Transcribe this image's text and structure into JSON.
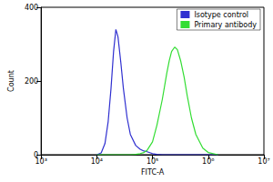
{
  "chart_data": {
    "type": "line",
    "x_label": "FITC-A",
    "y_label": "Count",
    "log": "x",
    "grid": false,
    "legend": "upper right",
    "xlim": [
      1000,
      10000000
    ],
    "xticks": [
      {
        "value": 1000,
        "label": "10³"
      },
      {
        "value": 10000,
        "label": "10⁴"
      },
      {
        "value": 100000,
        "label": "10⁵"
      },
      {
        "value": 1000000,
        "label": "10⁶"
      },
      {
        "value": 10000000,
        "label": "10⁷"
      }
    ],
    "ylim": [
      0,
      400
    ],
    "yticks": [
      0,
      200,
      400
    ],
    "x": [
      10000,
      12000,
      14000,
      16000,
      18000,
      20000,
      22000,
      24000,
      27000,
      30000,
      35000,
      40000,
      50000,
      60000,
      70000,
      80000,
      100000,
      120000,
      150000,
      180000,
      200000,
      220000,
      250000,
      280000,
      320000,
      370000,
      420000,
      500000,
      600000,
      800000,
      1000000,
      1500000
    ],
    "series": [
      {
        "name": "Isotype control",
        "color": "#3030d0",
        "values": [
          0,
          5,
          30,
          90,
          180,
          280,
          340,
          320,
          250,
          180,
          100,
          55,
          25,
          15,
          10,
          8,
          3,
          1,
          0,
          0,
          0,
          0,
          0,
          0,
          0,
          0,
          0,
          0,
          0,
          0,
          0,
          0
        ]
      },
      {
        "name": "Primary antibody",
        "color": "#33dd33",
        "values": [
          0,
          0,
          0,
          0,
          0,
          0,
          0,
          0,
          0,
          0,
          0,
          0,
          1,
          3,
          6,
          12,
          35,
          80,
          150,
          220,
          255,
          280,
          292,
          285,
          255,
          210,
          160,
          100,
          55,
          18,
          6,
          0
        ]
      }
    ]
  }
}
